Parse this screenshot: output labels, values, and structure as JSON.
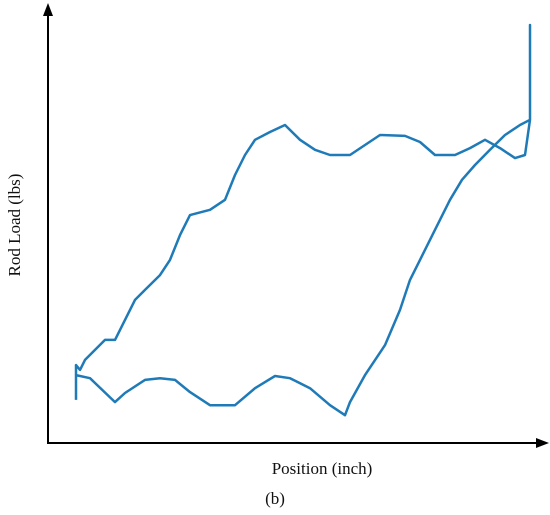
{
  "chart_data": {
    "type": "line",
    "xlabel": "Position (inch)",
    "ylabel": "Rod Load (lbs)",
    "caption": "(b)",
    "xlim": [
      0,
      100
    ],
    "ylim": [
      0,
      100
    ],
    "x": [
      5.6,
      5.6,
      8.4,
      13.4,
      15.4,
      19.4,
      22.4,
      25.4,
      28.4,
      32.4,
      37.4,
      41.4,
      45.4,
      48.4,
      52.4,
      56.4,
      59.4,
      60.4,
      63.4,
      67.4,
      70.4,
      72.4,
      74.4,
      77.4,
      80.4,
      82.8,
      85.4,
      88.4,
      91.4,
      94.4,
      96.4,
      96.4,
      96.4,
      95.4,
      93.4,
      90.4,
      87.4,
      84.4,
      81.4,
      77.4,
      74.4,
      71.4,
      66.4,
      63.4,
      60.4,
      56.4,
      53.4,
      50.4,
      47.4,
      44.4,
      41.4,
      39.4,
      37.4,
      35.4,
      32.4,
      28.4,
      26.4,
      24.4,
      22.4,
      19.4,
      17.4,
      15.4,
      13.4,
      11.4,
      9.4,
      7.4,
      6.4,
      5.6,
      5.6
    ],
    "series": [
      {
        "color": "#1f7ab8",
        "values": [
          9.9,
          15.6,
          14.9,
          9.4,
          11.5,
          14.5,
          14.9,
          14.5,
          11.7,
          8.7,
          8.7,
          12.6,
          15.4,
          14.9,
          12.6,
          8.7,
          6.4,
          9.4,
          15.6,
          22.5,
          30.6,
          37.5,
          42.1,
          49.0,
          55.9,
          60.5,
          63.9,
          67.4,
          70.8,
          73.1,
          74.3,
          96.1,
          74.3,
          66.2,
          65.5,
          67.8,
          69.7,
          67.8,
          66.2,
          66.2,
          69.2,
          70.6,
          70.8,
          68.5,
          66.2,
          66.2,
          67.4,
          69.7,
          73.1,
          71.5,
          69.7,
          66.2,
          61.6,
          55.9,
          53.6,
          52.4,
          47.8,
          42.1,
          38.6,
          35.2,
          32.9,
          28.3,
          23.7,
          23.7,
          21.4,
          19.1,
          16.8,
          17.9,
          9.9
        ]
      }
    ]
  }
}
